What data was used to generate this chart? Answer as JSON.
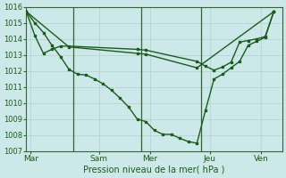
{
  "background_color": "#cce8e8",
  "grid_color": "#b0d0d0",
  "line_color": "#1a5c1a",
  "vline_color": "#336633",
  "ylim": [
    1007,
    1016
  ],
  "yticks": [
    1007,
    1008,
    1009,
    1010,
    1011,
    1012,
    1013,
    1014,
    1015,
    1016
  ],
  "xlabel": "Pression niveau de la mer( hPa )",
  "day_labels": [
    "Mar",
    "Sam",
    "Mer",
    "Jeu",
    "Ven"
  ],
  "day_positions": [
    0.5,
    8.5,
    14.5,
    21.5,
    27.5
  ],
  "vline_positions": [
    5.5,
    13.5,
    20.5
  ],
  "xlim": [
    0,
    30
  ],
  "line1_x": [
    0,
    1,
    2,
    3,
    4,
    5,
    6,
    7,
    8,
    9,
    10,
    11,
    12,
    13,
    14,
    15,
    16,
    17,
    18,
    19,
    20,
    21,
    22,
    23,
    24,
    25,
    26,
    27,
    28,
    29
  ],
  "line1_y": [
    1015.7,
    1015.0,
    1014.4,
    1013.6,
    1012.9,
    1012.1,
    1011.8,
    1011.75,
    1011.5,
    1011.2,
    1010.8,
    1010.3,
    1009.75,
    1009.0,
    1008.85,
    1008.3,
    1008.05,
    1008.05,
    1007.8,
    1007.6,
    1007.5,
    1009.55,
    1011.5,
    1011.8,
    1012.2,
    1012.6,
    1013.6,
    1013.85,
    1014.1,
    1015.7
  ],
  "line2_x": [
    0,
    1,
    2,
    3,
    4,
    5,
    13,
    14,
    20,
    21,
    22,
    23,
    24,
    25,
    26,
    27,
    28,
    29
  ],
  "line2_y": [
    1015.7,
    1014.2,
    1013.1,
    1013.35,
    1013.55,
    1013.55,
    1013.35,
    1013.3,
    1012.6,
    1012.3,
    1012.05,
    1012.25,
    1012.55,
    1013.8,
    1013.9,
    1014.0,
    1014.15,
    1015.7
  ],
  "line3_x": [
    0,
    29
  ],
  "line3_y": [
    1015.7,
    1015.7
  ],
  "line3b_x": [
    0,
    5,
    13,
    14,
    20,
    29
  ],
  "line3b_y": [
    1015.7,
    1013.5,
    1013.1,
    1013.05,
    1012.2,
    1015.7
  ],
  "figsize": [
    3.2,
    2.0
  ],
  "dpi": 100
}
